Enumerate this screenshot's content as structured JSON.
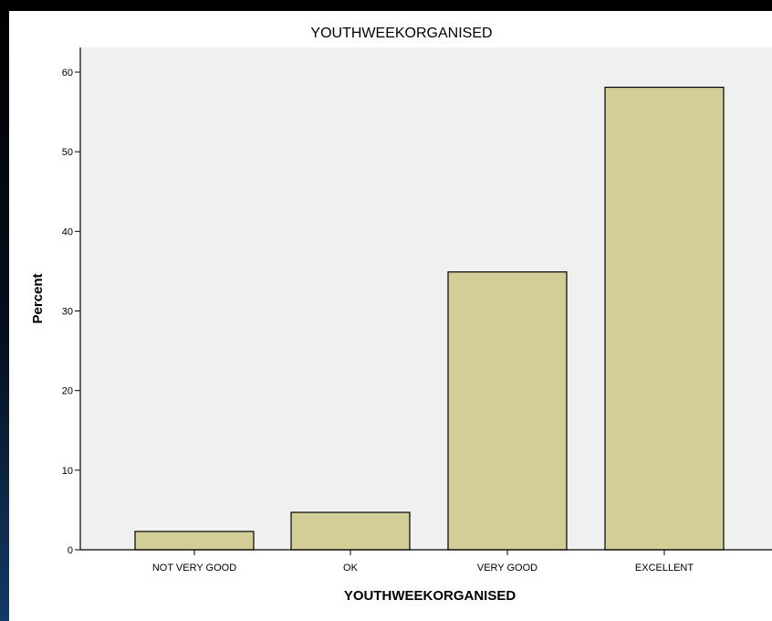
{
  "chart_data": {
    "type": "bar",
    "title": "YOUTHWEEKORGANISED",
    "xlabel": "YOUTHWEEKORGANISED",
    "ylabel": "Percent",
    "categories": [
      "NOT VERY GOOD",
      "OK",
      "VERY GOOD",
      "EXCELLENT"
    ],
    "values": [
      2.3,
      4.7,
      34.9,
      58.1
    ],
    "ylim": [
      0,
      62
    ],
    "yticks": [
      "0",
      "10",
      "20",
      "30",
      "40",
      "50",
      "60"
    ],
    "grid": false,
    "legend": "none",
    "colors": {
      "bar_fill": "#d3cd98",
      "bar_stroke": "#000000",
      "plot_background": "#f0f0f0",
      "page_background": "#000000"
    }
  }
}
